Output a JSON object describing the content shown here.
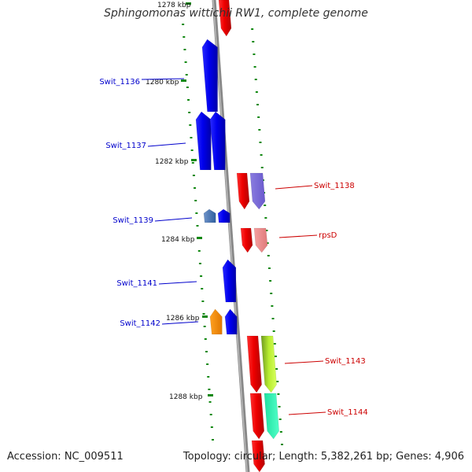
{
  "title": "Sphingomonas wittichii RW1, complete genome",
  "accession_text": "Accession: NC_009511",
  "summary_text": "Topology: circular; Length: 5,382,261 bp; Genes: 4,906",
  "ticks": [
    {
      "label": "1278 kbp"
    },
    {
      "label": "1280 kbp"
    },
    {
      "label": "1282 kbp"
    },
    {
      "label": "1284 kbp"
    },
    {
      "label": "1286 kbp"
    },
    {
      "label": "1288 kbp"
    }
  ],
  "gene_labels": [
    {
      "name": "Swit_1136",
      "color": "#0000cc"
    },
    {
      "name": "Swit_1137",
      "color": "#0000cc"
    },
    {
      "name": "Swit_1138",
      "color": "#cc0000"
    },
    {
      "name": "Swit_1139",
      "color": "#0000cc"
    },
    {
      "name": "rpsD",
      "color": "#cc0000"
    },
    {
      "name": "Swit_1141",
      "color": "#0000cc"
    },
    {
      "name": "Swit_1142",
      "color": "#0000cc"
    },
    {
      "name": "Swit_1143",
      "color": "#cc0000"
    },
    {
      "name": "Swit_1144",
      "color": "#cc0000"
    }
  ],
  "colors": {
    "forward_strand": "#ee0000",
    "reverse_strand": "#0000ee",
    "backbone": "#888888",
    "tick_marks": "#118811"
  }
}
